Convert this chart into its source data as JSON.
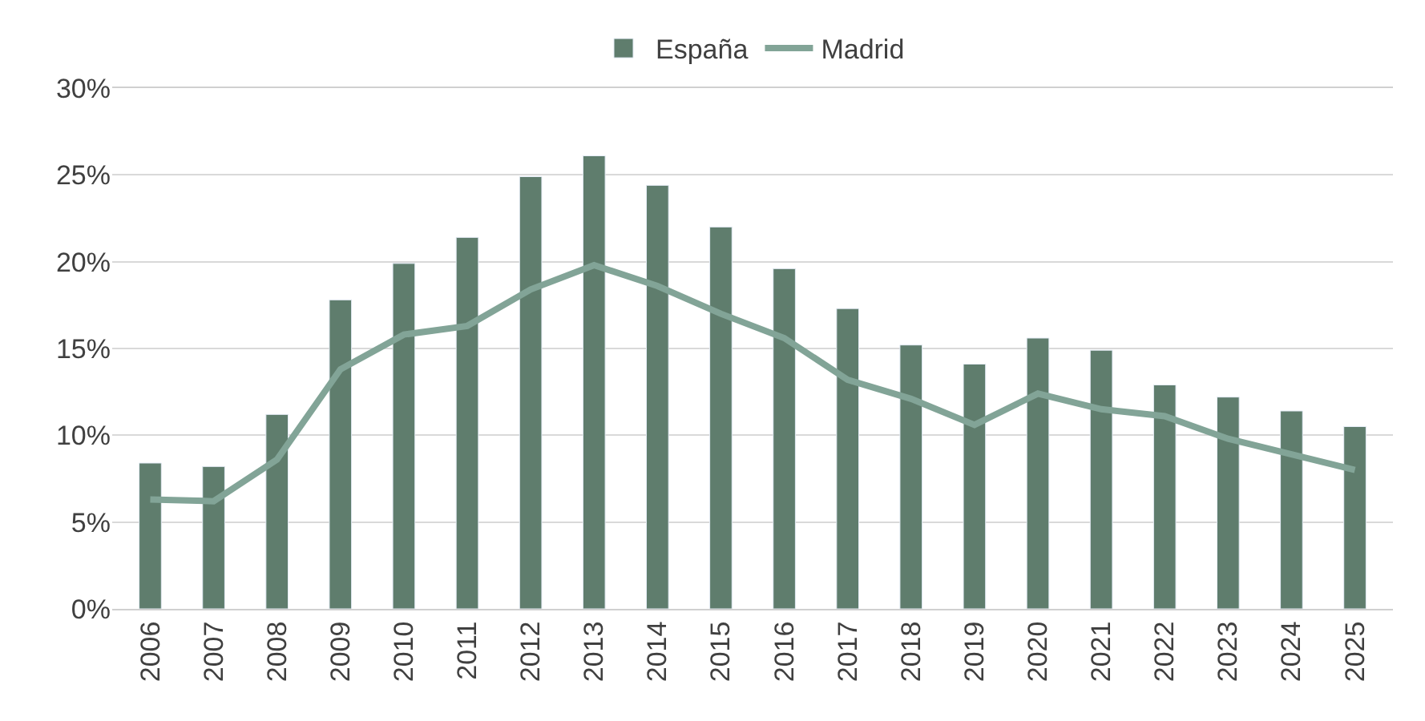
{
  "chart_data": {
    "type": "bar",
    "categories": [
      "2006",
      "2007",
      "2008",
      "2009",
      "2010",
      "2011",
      "2012",
      "2013",
      "2014",
      "2015",
      "2016",
      "2017",
      "2018",
      "2019",
      "2020",
      "2021",
      "2022",
      "2023",
      "2024",
      "2025"
    ],
    "series": [
      {
        "name": "España",
        "color": "#5f7d6d",
        "values": [
          8.4,
          8.2,
          11.2,
          17.8,
          19.9,
          21.4,
          24.9,
          26.1,
          24.4,
          22.0,
          19.6,
          17.3,
          15.2,
          14.1,
          15.6,
          14.9,
          12.9,
          12.2,
          11.4,
          10.5
        ]
      },
      {
        "name": "Madrid",
        "type": "line",
        "color": "#82a497",
        "values": [
          6.3,
          6.2,
          8.6,
          13.8,
          15.8,
          16.3,
          18.4,
          19.8,
          18.6,
          17.0,
          15.6,
          13.2,
          12.1,
          10.6,
          12.4,
          11.5,
          11.1,
          9.8,
          8.9,
          8.0
        ]
      }
    ],
    "ylim": [
      0,
      30
    ],
    "yticks": [
      {
        "value": 0,
        "label": "0%"
      },
      {
        "value": 5,
        "label": "5%"
      },
      {
        "value": 10,
        "label": "10%"
      },
      {
        "value": 15,
        "label": "15%"
      },
      {
        "value": 20,
        "label": "20%"
      },
      {
        "value": 25,
        "label": "25%"
      },
      {
        "value": 30,
        "label": "30%"
      }
    ],
    "grid": "y",
    "legend": "top",
    "marker": "none",
    "line_style": "solid"
  }
}
